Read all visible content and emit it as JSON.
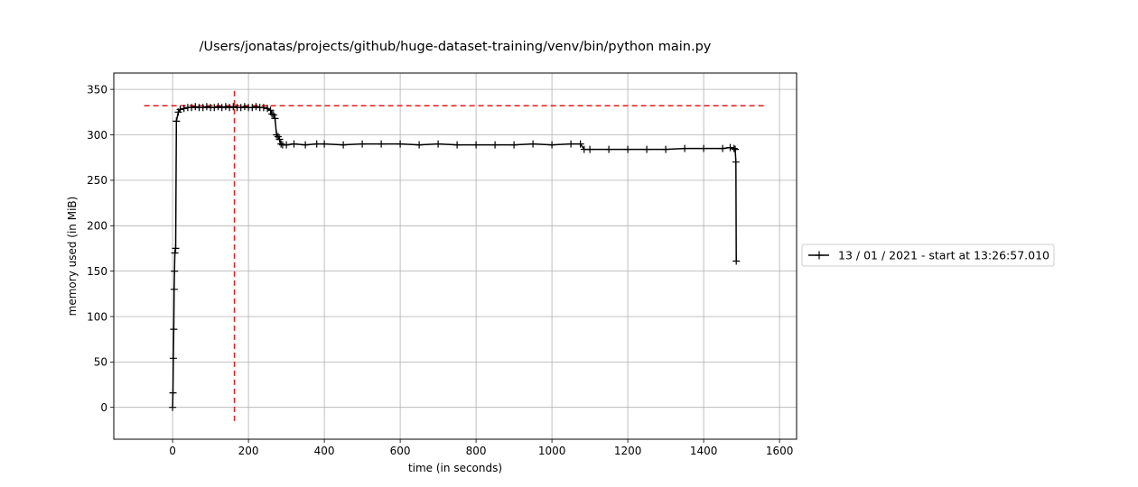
{
  "chart_data": {
    "type": "line",
    "title": "/Users/jonatas/projects/github/huge-dataset-training/venv/bin/python main.py",
    "xlabel": "time (in seconds)",
    "ylabel": "memory used (in MiB)",
    "xlim": [
      -155,
      1645
    ],
    "ylim": [
      -35,
      368
    ],
    "xticks": [
      0,
      200,
      400,
      600,
      800,
      1000,
      1200,
      1400,
      1600
    ],
    "yticks": [
      0,
      50,
      100,
      150,
      200,
      250,
      300,
      350
    ],
    "grid": true,
    "legend_position": "outside-right",
    "series": [
      {
        "name": "13 / 01 / 2021 - start at 13:26:57.010",
        "color": "#000000",
        "marker": "+",
        "x": [
          0,
          1,
          2,
          3,
          4,
          5,
          6,
          8,
          10,
          15,
          20,
          30,
          40,
          50,
          60,
          70,
          80,
          90,
          100,
          110,
          120,
          130,
          140,
          150,
          160,
          170,
          180,
          190,
          200,
          210,
          220,
          230,
          240,
          250,
          258,
          262,
          266,
          270,
          274,
          278,
          282,
          286,
          290,
          300,
          320,
          350,
          380,
          400,
          450,
          500,
          550,
          600,
          650,
          700,
          750,
          800,
          850,
          900,
          950,
          1000,
          1050,
          1075,
          1085,
          1100,
          1150,
          1200,
          1250,
          1300,
          1350,
          1400,
          1450,
          1470,
          1480,
          1483,
          1485,
          1486
        ],
        "values": [
          0,
          16,
          54,
          86,
          130,
          150,
          170,
          175,
          315,
          325,
          328,
          329,
          330,
          330,
          331,
          330,
          330,
          331,
          330,
          330,
          331,
          330,
          331,
          330,
          331,
          330,
          330,
          331,
          330,
          330,
          331,
          330,
          330,
          329,
          327,
          323,
          322,
          318,
          300,
          298,
          295,
          290,
          289,
          289,
          290,
          289,
          290,
          290,
          289,
          290,
          290,
          290,
          289,
          290,
          289,
          289,
          289,
          289,
          290,
          289,
          290,
          290,
          284,
          284,
          284,
          284,
          284,
          284,
          285,
          285,
          285,
          286,
          285,
          284,
          270,
          161
        ]
      }
    ],
    "reference_lines": [
      {
        "orientation": "horizontal",
        "value": 332,
        "from": -75,
        "to": 1560,
        "color": "#e41a1c",
        "style": "dashed"
      },
      {
        "orientation": "vertical",
        "value": 163,
        "from": -15,
        "to": 352,
        "color": "#e41a1c",
        "style": "dashed"
      }
    ]
  }
}
